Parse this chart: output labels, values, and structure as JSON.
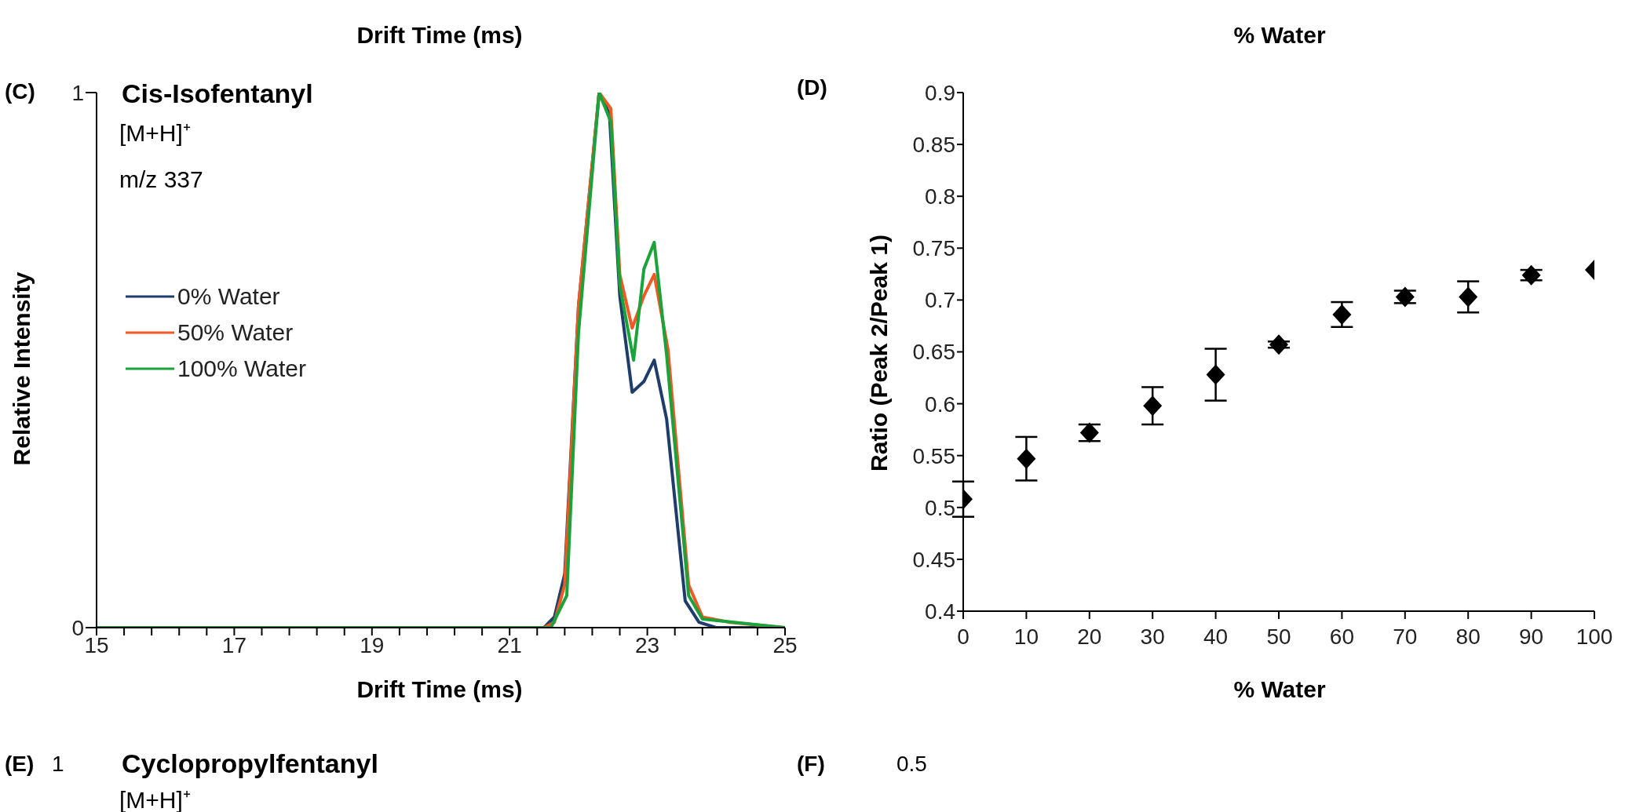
{
  "chart_data": [
    {
      "type": "other",
      "annotations": [
        "Drift Time (ms)",
        "% Water"
      ]
    },
    {
      "type": "line",
      "title": "Cis-Isofentanyl",
      "xlabel": "Drift Time (ms)",
      "ylabel": "Relative Intensity",
      "annotations": [
        "(C)",
        "[M+H]⁺",
        "m/z 337"
      ],
      "series": [
        {
          "name": "0% Water",
          "color": "#1f3d6b",
          "x": [
            15,
            21.5,
            21.65,
            21.8,
            22.0,
            22.3,
            22.45,
            22.6,
            22.78,
            22.95,
            23.1,
            23.28,
            23.55,
            23.75,
            24.0,
            25
          ],
          "values": [
            0,
            0,
            0.02,
            0.1,
            0.6,
            1,
            0.96,
            0.62,
            0.44,
            0.46,
            0.5,
            0.39,
            0.05,
            0.01,
            0,
            0
          ]
        },
        {
          "name": "50% Water",
          "color": "#f05a22",
          "x": [
            15,
            21.5,
            21.65,
            21.8,
            22.0,
            22.3,
            22.47,
            22.6,
            22.78,
            22.95,
            23.1,
            23.3,
            23.6,
            23.8,
            24.2,
            25
          ],
          "values": [
            0,
            0,
            0.01,
            0.08,
            0.6,
            1,
            0.97,
            0.66,
            0.56,
            0.62,
            0.66,
            0.52,
            0.08,
            0.02,
            0.01,
            0
          ]
        },
        {
          "name": "100% Water",
          "color": "#1aa33a",
          "x": [
            15,
            21.6,
            21.83,
            22.0,
            22.3,
            22.47,
            22.6,
            22.8,
            22.95,
            23.1,
            23.28,
            23.6,
            23.8,
            25
          ],
          "values": [
            0,
            0,
            0.06,
            0.55,
            1,
            0.945,
            0.64,
            0.5,
            0.67,
            0.72,
            0.51,
            0.06,
            0.016,
            0
          ]
        }
      ],
      "xlim": [
        15,
        25
      ],
      "xticks": [
        15,
        {
          "value": 15.4,
          "label": null
        },
        {
          "value": 15.8,
          "label": null
        },
        {
          "value": 16.2,
          "label": null
        },
        {
          "value": 16.6,
          "label": null
        },
        17,
        {
          "value": 17.4,
          "label": null
        },
        {
          "value": 17.8,
          "label": null
        },
        {
          "value": 18.2,
          "label": null
        },
        {
          "value": 18.6,
          "label": null
        },
        19,
        {
          "value": 19.4,
          "label": null
        },
        {
          "value": 19.8,
          "label": null
        },
        {
          "value": 20.2,
          "label": null
        },
        {
          "value": 20.6,
          "label": null
        },
        21,
        {
          "value": 21.4,
          "label": null
        },
        {
          "value": 21.8,
          "label": null
        },
        {
          "value": 22.2,
          "label": null
        },
        {
          "value": 22.6,
          "label": null
        },
        23,
        {
          "value": 23.4,
          "label": null
        },
        {
          "value": 23.8,
          "label": null
        },
        {
          "value": 24.2,
          "label": null
        },
        {
          "value": 24.6,
          "label": null
        },
        25
      ],
      "ylim": [
        0,
        1
      ],
      "yticks": [
        0,
        1
      ],
      "grid": false,
      "legend": "top left",
      "marker": "none",
      "line_style": "solid"
    },
    {
      "type": "scatter",
      "xlabel": "% Water",
      "ylabel": "Ratio (Peak 2/Peak 1)",
      "annotations": [
        "(D)"
      ],
      "x": [
        0,
        10,
        20,
        30,
        40,
        50,
        60,
        70,
        80,
        90,
        100
      ],
      "values": [
        0.508,
        0.547,
        0.572,
        0.598,
        0.628,
        0.657,
        0.686,
        0.703,
        0.703,
        0.724,
        0.729
      ],
      "errors": [
        0.017,
        0.021,
        0.008,
        0.018,
        0.025,
        0.003,
        0.012,
        0.006,
        0.015,
        0.005,
        null
      ],
      "color": "#000000",
      "marker": "diamond",
      "xlim": [
        0,
        100
      ],
      "xticks": [
        0,
        10,
        20,
        30,
        40,
        50,
        60,
        70,
        80,
        90,
        100
      ],
      "ylim": [
        0.4,
        0.9
      ],
      "yticks": [
        0.4,
        0.45,
        0.5,
        0.55,
        0.6,
        0.65,
        0.7,
        0.75,
        0.8,
        0.85,
        0.9
      ],
      "grid": false,
      "legend": false
    },
    {
      "type": "other",
      "annotations": [
        "(E)",
        "1",
        "Cyclopropylfentanyl",
        "[M+H]⁺",
        "(F)",
        "0.5"
      ]
    }
  ]
}
